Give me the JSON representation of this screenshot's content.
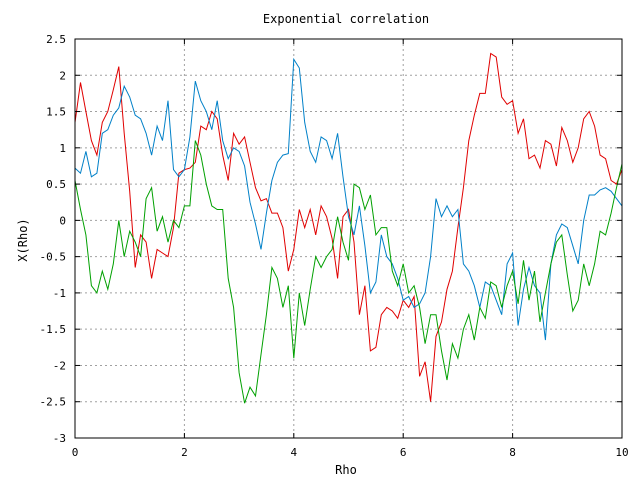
{
  "chart_data": {
    "type": "line",
    "title": "Exponential correlation",
    "xlabel": "Rho",
    "ylabel": "X(Rho)",
    "xlim": [
      0,
      10
    ],
    "ylim": [
      -3,
      2.5
    ],
    "grid": true,
    "legend": "none",
    "x_ticks": [
      "0",
      "2",
      "4",
      "6",
      "8",
      "10"
    ],
    "y_ticks": [
      "-3",
      "-2.5",
      "-2",
      "-1.5",
      "-1",
      "-0.5",
      "0",
      "0.5",
      "1",
      "1.5",
      "2",
      "2.5"
    ],
    "series": [
      {
        "color": "#e00000",
        "points": [
          [
            0,
            1.35
          ],
          [
            0.1,
            1.9
          ],
          [
            0.2,
            1.5
          ],
          [
            0.3,
            1.1
          ],
          [
            0.4,
            0.9
          ],
          [
            0.5,
            1.35
          ],
          [
            0.6,
            1.5
          ],
          [
            0.7,
            1.8
          ],
          [
            0.8,
            2.12
          ],
          [
            0.9,
            1.2
          ],
          [
            1.0,
            0.4
          ],
          [
            1.1,
            -0.65
          ],
          [
            1.2,
            -0.2
          ],
          [
            1.3,
            -0.3
          ],
          [
            1.4,
            -0.8
          ],
          [
            1.5,
            -0.4
          ],
          [
            1.6,
            -0.45
          ],
          [
            1.7,
            -0.5
          ],
          [
            1.8,
            -0.1
          ],
          [
            1.9,
            0.65
          ],
          [
            2.0,
            0.7
          ],
          [
            2.1,
            0.72
          ],
          [
            2.2,
            0.8
          ],
          [
            2.3,
            1.3
          ],
          [
            2.4,
            1.25
          ],
          [
            2.5,
            1.5
          ],
          [
            2.6,
            1.4
          ],
          [
            2.7,
            0.9
          ],
          [
            2.8,
            0.55
          ],
          [
            2.9,
            1.2
          ],
          [
            3.0,
            1.05
          ],
          [
            3.1,
            1.15
          ],
          [
            3.2,
            0.8
          ],
          [
            3.3,
            0.45
          ],
          [
            3.4,
            0.27
          ],
          [
            3.5,
            0.3
          ],
          [
            3.6,
            0.1
          ],
          [
            3.7,
            0.1
          ],
          [
            3.8,
            -0.1
          ],
          [
            3.9,
            -0.7
          ],
          [
            4.0,
            -0.4
          ],
          [
            4.1,
            0.15
          ],
          [
            4.2,
            -0.1
          ],
          [
            4.3,
            0.15
          ],
          [
            4.4,
            -0.2
          ],
          [
            4.5,
            0.2
          ],
          [
            4.6,
            0.05
          ],
          [
            4.7,
            -0.25
          ],
          [
            4.8,
            -0.8
          ],
          [
            4.9,
            0.05
          ],
          [
            5.0,
            0.15
          ],
          [
            5.1,
            -0.3
          ],
          [
            5.2,
            -1.3
          ],
          [
            5.3,
            -0.9
          ],
          [
            5.4,
            -1.8
          ],
          [
            5.5,
            -1.75
          ],
          [
            5.6,
            -1.3
          ],
          [
            5.7,
            -1.2
          ],
          [
            5.8,
            -1.25
          ],
          [
            5.9,
            -1.35
          ],
          [
            6.0,
            -1.1
          ],
          [
            6.1,
            -1.2
          ],
          [
            6.2,
            -1.05
          ],
          [
            6.3,
            -2.15
          ],
          [
            6.4,
            -1.95
          ],
          [
            6.5,
            -2.5
          ],
          [
            6.6,
            -1.6
          ],
          [
            6.7,
            -1.4
          ],
          [
            6.8,
            -0.95
          ],
          [
            6.9,
            -0.7
          ],
          [
            7.0,
            -0.1
          ],
          [
            7.1,
            0.45
          ],
          [
            7.2,
            1.1
          ],
          [
            7.3,
            1.45
          ],
          [
            7.4,
            1.75
          ],
          [
            7.5,
            1.75
          ],
          [
            7.6,
            2.3
          ],
          [
            7.7,
            2.25
          ],
          [
            7.8,
            1.7
          ],
          [
            7.9,
            1.6
          ],
          [
            8.0,
            1.65
          ],
          [
            8.1,
            1.2
          ],
          [
            8.2,
            1.4
          ],
          [
            8.3,
            0.85
          ],
          [
            8.4,
            0.9
          ],
          [
            8.5,
            0.72
          ],
          [
            8.6,
            1.1
          ],
          [
            8.7,
            1.05
          ],
          [
            8.8,
            0.75
          ],
          [
            8.9,
            1.28
          ],
          [
            9.0,
            1.1
          ],
          [
            9.1,
            0.8
          ],
          [
            9.2,
            1.0
          ],
          [
            9.3,
            1.4
          ],
          [
            9.4,
            1.5
          ],
          [
            9.5,
            1.3
          ],
          [
            9.6,
            0.9
          ],
          [
            9.7,
            0.85
          ],
          [
            9.8,
            0.55
          ],
          [
            9.9,
            0.5
          ],
          [
            10.0,
            0.7
          ]
        ]
      },
      {
        "color": "#0080c8",
        "points": [
          [
            0,
            0.72
          ],
          [
            0.1,
            0.65
          ],
          [
            0.2,
            0.95
          ],
          [
            0.3,
            0.6
          ],
          [
            0.4,
            0.65
          ],
          [
            0.5,
            1.2
          ],
          [
            0.6,
            1.25
          ],
          [
            0.7,
            1.45
          ],
          [
            0.8,
            1.55
          ],
          [
            0.9,
            1.85
          ],
          [
            1.0,
            1.7
          ],
          [
            1.1,
            1.45
          ],
          [
            1.2,
            1.4
          ],
          [
            1.3,
            1.2
          ],
          [
            1.4,
            0.9
          ],
          [
            1.5,
            1.3
          ],
          [
            1.6,
            1.1
          ],
          [
            1.7,
            1.65
          ],
          [
            1.8,
            0.7
          ],
          [
            1.9,
            0.6
          ],
          [
            2.0,
            0.7
          ],
          [
            2.1,
            1.15
          ],
          [
            2.2,
            1.92
          ],
          [
            2.3,
            1.65
          ],
          [
            2.4,
            1.5
          ],
          [
            2.5,
            1.25
          ],
          [
            2.6,
            1.65
          ],
          [
            2.7,
            1.1
          ],
          [
            2.8,
            0.85
          ],
          [
            2.9,
            1.0
          ],
          [
            3.0,
            0.95
          ],
          [
            3.1,
            0.75
          ],
          [
            3.2,
            0.25
          ],
          [
            3.3,
            -0.05
          ],
          [
            3.4,
            -0.4
          ],
          [
            3.5,
            0.1
          ],
          [
            3.6,
            0.55
          ],
          [
            3.7,
            0.8
          ],
          [
            3.8,
            0.9
          ],
          [
            3.9,
            0.92
          ],
          [
            4.0,
            2.22
          ],
          [
            4.1,
            2.1
          ],
          [
            4.2,
            1.35
          ],
          [
            4.3,
            0.95
          ],
          [
            4.4,
            0.8
          ],
          [
            4.5,
            1.15
          ],
          [
            4.6,
            1.1
          ],
          [
            4.7,
            0.85
          ],
          [
            4.8,
            1.2
          ],
          [
            4.9,
            0.6
          ],
          [
            5.0,
            0.05
          ],
          [
            5.1,
            -0.2
          ],
          [
            5.2,
            0.2
          ],
          [
            5.3,
            -0.35
          ],
          [
            5.4,
            -1.0
          ],
          [
            5.5,
            -0.85
          ],
          [
            5.6,
            -0.2
          ],
          [
            5.7,
            -0.5
          ],
          [
            5.8,
            -0.6
          ],
          [
            5.9,
            -0.8
          ],
          [
            6.0,
            -1.1
          ],
          [
            6.1,
            -1.05
          ],
          [
            6.2,
            -1.2
          ],
          [
            6.3,
            -1.15
          ],
          [
            6.4,
            -1.0
          ],
          [
            6.5,
            -0.5
          ],
          [
            6.6,
            0.3
          ],
          [
            6.7,
            0.05
          ],
          [
            6.8,
            0.2
          ],
          [
            6.9,
            0.05
          ],
          [
            7.0,
            0.15
          ],
          [
            7.1,
            -0.6
          ],
          [
            7.2,
            -0.7
          ],
          [
            7.3,
            -0.9
          ],
          [
            7.4,
            -1.2
          ],
          [
            7.5,
            -0.85
          ],
          [
            7.6,
            -0.9
          ],
          [
            7.7,
            -1.1
          ],
          [
            7.8,
            -1.3
          ],
          [
            7.9,
            -0.6
          ],
          [
            8.0,
            -0.45
          ],
          [
            8.1,
            -1.45
          ],
          [
            8.2,
            -0.95
          ],
          [
            8.3,
            -0.65
          ],
          [
            8.4,
            -0.9
          ],
          [
            8.5,
            -1.0
          ],
          [
            8.6,
            -1.65
          ],
          [
            8.7,
            -0.6
          ],
          [
            8.8,
            -0.2
          ],
          [
            8.9,
            -0.05
          ],
          [
            9.0,
            -0.1
          ],
          [
            9.1,
            -0.35
          ],
          [
            9.2,
            -0.6
          ],
          [
            9.3,
            0.0
          ],
          [
            9.4,
            0.35
          ],
          [
            9.5,
            0.35
          ],
          [
            9.6,
            0.42
          ],
          [
            9.7,
            0.45
          ],
          [
            9.8,
            0.4
          ],
          [
            9.9,
            0.3
          ],
          [
            10.0,
            0.2
          ]
        ]
      },
      {
        "color": "#00a000",
        "points": [
          [
            0,
            0.55
          ],
          [
            0.1,
            0.15
          ],
          [
            0.2,
            -0.2
          ],
          [
            0.3,
            -0.9
          ],
          [
            0.4,
            -1.0
          ],
          [
            0.5,
            -0.7
          ],
          [
            0.6,
            -0.95
          ],
          [
            0.7,
            -0.6
          ],
          [
            0.8,
            0.0
          ],
          [
            0.9,
            -0.5
          ],
          [
            1.0,
            -0.15
          ],
          [
            1.1,
            -0.3
          ],
          [
            1.2,
            -0.5
          ],
          [
            1.3,
            0.3
          ],
          [
            1.4,
            0.45
          ],
          [
            1.5,
            -0.15
          ],
          [
            1.6,
            0.05
          ],
          [
            1.7,
            -0.3
          ],
          [
            1.8,
            0.0
          ],
          [
            1.9,
            -0.1
          ],
          [
            2.0,
            0.2
          ],
          [
            2.1,
            0.2
          ],
          [
            2.2,
            1.1
          ],
          [
            2.3,
            0.9
          ],
          [
            2.4,
            0.5
          ],
          [
            2.5,
            0.2
          ],
          [
            2.6,
            0.15
          ],
          [
            2.7,
            0.15
          ],
          [
            2.8,
            -0.8
          ],
          [
            2.9,
            -1.2
          ],
          [
            3.0,
            -2.1
          ],
          [
            3.1,
            -2.52
          ],
          [
            3.2,
            -2.3
          ],
          [
            3.3,
            -2.42
          ],
          [
            3.4,
            -1.85
          ],
          [
            3.5,
            -1.3
          ],
          [
            3.6,
            -0.65
          ],
          [
            3.7,
            -0.8
          ],
          [
            3.8,
            -1.2
          ],
          [
            3.9,
            -0.9
          ],
          [
            4.0,
            -1.9
          ],
          [
            4.1,
            -1.0
          ],
          [
            4.2,
            -1.45
          ],
          [
            4.3,
            -0.95
          ],
          [
            4.4,
            -0.5
          ],
          [
            4.5,
            -0.65
          ],
          [
            4.6,
            -0.5
          ],
          [
            4.7,
            -0.4
          ],
          [
            4.8,
            0.05
          ],
          [
            4.9,
            -0.3
          ],
          [
            5.0,
            -0.55
          ],
          [
            5.1,
            0.5
          ],
          [
            5.2,
            0.45
          ],
          [
            5.3,
            0.15
          ],
          [
            5.4,
            0.35
          ],
          [
            5.5,
            -0.2
          ],
          [
            5.6,
            -0.1
          ],
          [
            5.7,
            -0.1
          ],
          [
            5.8,
            -0.7
          ],
          [
            5.9,
            -0.9
          ],
          [
            6.0,
            -0.6
          ],
          [
            6.1,
            -1.0
          ],
          [
            6.2,
            -0.9
          ],
          [
            6.3,
            -1.2
          ],
          [
            6.4,
            -1.7
          ],
          [
            6.5,
            -1.3
          ],
          [
            6.6,
            -1.3
          ],
          [
            6.7,
            -1.8
          ],
          [
            6.8,
            -2.2
          ],
          [
            6.9,
            -1.7
          ],
          [
            7.0,
            -1.9
          ],
          [
            7.1,
            -1.5
          ],
          [
            7.2,
            -1.3
          ],
          [
            7.3,
            -1.65
          ],
          [
            7.4,
            -1.2
          ],
          [
            7.5,
            -1.35
          ],
          [
            7.6,
            -0.85
          ],
          [
            7.7,
            -0.9
          ],
          [
            7.8,
            -1.2
          ],
          [
            7.9,
            -0.9
          ],
          [
            8.0,
            -0.7
          ],
          [
            8.1,
            -1.15
          ],
          [
            8.2,
            -0.55
          ],
          [
            8.3,
            -1.1
          ],
          [
            8.4,
            -0.7
          ],
          [
            8.5,
            -1.4
          ],
          [
            8.6,
            -1.0
          ],
          [
            8.7,
            -0.6
          ],
          [
            8.8,
            -0.3
          ],
          [
            8.9,
            -0.2
          ],
          [
            9.0,
            -0.75
          ],
          [
            9.1,
            -1.25
          ],
          [
            9.2,
            -1.1
          ],
          [
            9.3,
            -0.6
          ],
          [
            9.4,
            -0.9
          ],
          [
            9.5,
            -0.6
          ],
          [
            9.6,
            -0.15
          ],
          [
            9.7,
            -0.2
          ],
          [
            9.8,
            0.1
          ],
          [
            9.9,
            0.45
          ],
          [
            10.0,
            0.78
          ]
        ]
      }
    ]
  }
}
